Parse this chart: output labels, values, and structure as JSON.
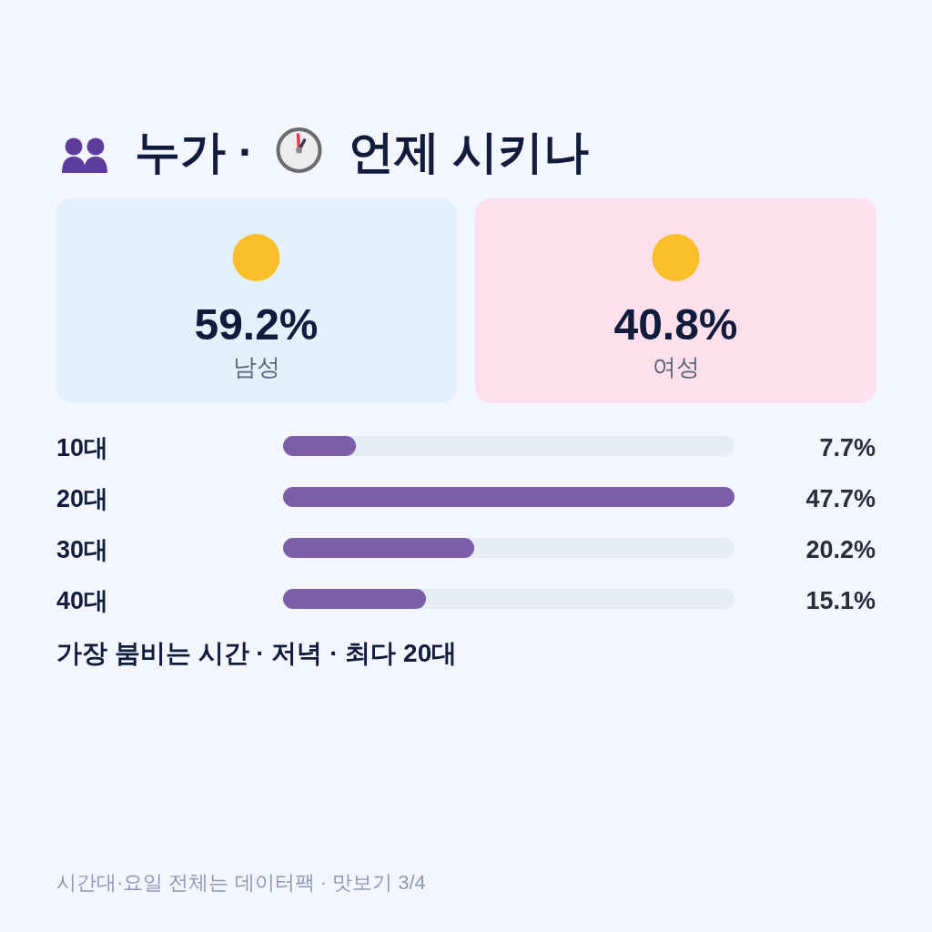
{
  "chart_data": [
    {
      "type": "other",
      "title": "누가 · 언제 시키나",
      "categories": [
        "남성",
        "여성"
      ],
      "values": [
        59.2,
        40.8
      ],
      "value_labels": [
        "59.2%",
        "40.8%"
      ],
      "colors": [
        "#e3f1fc",
        "#fde0ec"
      ]
    },
    {
      "type": "bar",
      "orientation": "horizontal",
      "categories": [
        "10대",
        "20대",
        "30대",
        "40대"
      ],
      "values": [
        7.7,
        47.7,
        20.2,
        15.1
      ],
      "value_labels": [
        "7.7%",
        "47.7%",
        "20.2%",
        "15.1%"
      ],
      "color": "#7b5ea7",
      "annotations": [
        "가장 붐비는 시간 · 저녁 · 최다 20대",
        "시간대·요일 전체는 데이터팩 · 맛보기 3/4"
      ]
    }
  ]
}
